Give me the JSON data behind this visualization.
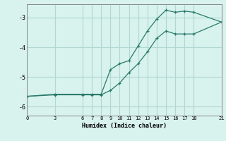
{
  "xlabel": "Humidex (Indice chaleur)",
  "background_color": "#d8f2ee",
  "grid_color": "#b0d8d2",
  "line_color": "#2a7a6a",
  "xlim": [
    0,
    21
  ],
  "ylim": [
    -6.3,
    -2.55
  ],
  "xticks": [
    0,
    3,
    6,
    7,
    8,
    9,
    10,
    11,
    12,
    13,
    14,
    15,
    16,
    17,
    18,
    21
  ],
  "yticks": [
    -6,
    -5,
    -4,
    -3
  ],
  "line1_x": [
    0,
    3,
    6,
    7,
    8,
    9,
    10,
    11,
    12,
    13,
    14,
    15,
    16,
    17,
    18,
    21
  ],
  "line1_y": [
    -5.65,
    -5.58,
    -5.58,
    -5.58,
    -5.58,
    -4.75,
    -4.55,
    -4.45,
    -3.95,
    -3.45,
    -3.05,
    -2.75,
    -2.82,
    -2.78,
    -2.82,
    -3.15
  ],
  "line2_x": [
    0,
    3,
    6,
    7,
    8,
    9,
    10,
    11,
    12,
    13,
    14,
    15,
    16,
    17,
    18,
    21
  ],
  "line2_y": [
    -5.65,
    -5.6,
    -5.6,
    -5.6,
    -5.6,
    -5.45,
    -5.2,
    -4.85,
    -4.55,
    -4.15,
    -3.7,
    -3.45,
    -3.55,
    -3.55,
    -3.55,
    -3.15
  ]
}
